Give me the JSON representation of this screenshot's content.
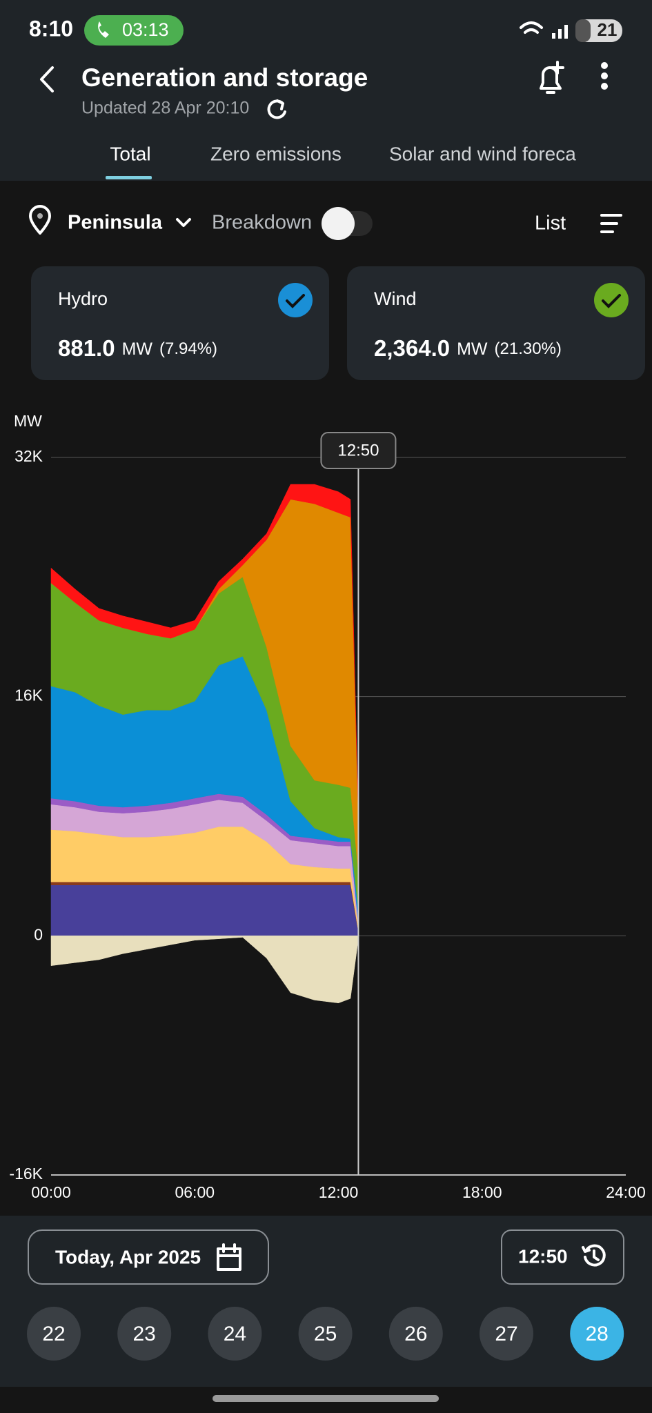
{
  "status_bar": {
    "time": "8:10",
    "call_timer": "03:13",
    "battery": "21"
  },
  "header": {
    "title": "Generation and storage",
    "updated": "Updated 28 Apr 20:10"
  },
  "tabs": [
    "Total",
    "Zero emissions",
    "Solar and wind foreca"
  ],
  "filters": {
    "region": "Peninsula",
    "breakdown": "Breakdown",
    "list": "List"
  },
  "cards": [
    {
      "label": "Hydro",
      "value": "881.0",
      "unit": "MW",
      "share": "(7.94%)",
      "color": "#1a8fd6"
    },
    {
      "label": "Wind",
      "value": "2,364.0",
      "unit": "MW",
      "share": "(21.30%)",
      "color": "#6aab1f"
    }
  ],
  "chart_data": {
    "type": "area",
    "stacked": true,
    "y_label": "MW",
    "grid": true,
    "x": [
      0,
      1,
      2,
      3,
      4,
      5,
      6,
      7,
      8,
      9,
      10,
      11,
      12,
      12.5,
      12.8333
    ],
    "xlim": [
      0,
      24
    ],
    "xticks": [
      {
        "value": 0,
        "label": "00:00"
      },
      {
        "value": 6,
        "label": "06:00"
      },
      {
        "value": 12,
        "label": "12:00"
      },
      {
        "value": 18,
        "label": "18:00"
      },
      {
        "value": 24,
        "label": "24:00"
      }
    ],
    "ylim": [
      -16000,
      32000
    ],
    "yticks": [
      {
        "value": -16000,
        "label": "-16K"
      },
      0,
      {
        "value": 16000,
        "label": "16K"
      },
      {
        "value": 32000,
        "label": "32K"
      }
    ],
    "cursor": {
      "value": 12.8333,
      "label": "12:50"
    },
    "series": [
      {
        "color": "#48409a",
        "values": [
          3400,
          3400,
          3400,
          3400,
          3400,
          3400,
          3400,
          3400,
          3400,
          3400,
          3400,
          3400,
          3400,
          3400,
          300
        ]
      },
      {
        "color": "#8a3b1c",
        "values": [
          200,
          200,
          200,
          200,
          200,
          200,
          200,
          200,
          200,
          200,
          200,
          200,
          200,
          200,
          0
        ]
      },
      {
        "color": "#ffcc66",
        "values": [
          3500,
          3400,
          3200,
          3000,
          3000,
          3100,
          3300,
          3700,
          3700,
          2700,
          1200,
          1000,
          900,
          900,
          300
        ]
      },
      {
        "color": "#d5a6d6",
        "values": [
          1700,
          1600,
          1500,
          1600,
          1700,
          1800,
          1900,
          1800,
          1600,
          1400,
          1600,
          1600,
          1500,
          1500,
          200
        ]
      },
      {
        "color": "#9b5cc6",
        "values": [
          400,
          400,
          400,
          400,
          400,
          400,
          400,
          400,
          400,
          400,
          300,
          300,
          300,
          300,
          100
        ]
      },
      {
        "color": "#0b8fd6",
        "values": [
          7500,
          7300,
          6700,
          6200,
          6400,
          6200,
          6500,
          8600,
          9400,
          7000,
          2300,
          700,
          300,
          200,
          900
        ]
      },
      {
        "color": "#6aab1f",
        "values": [
          6900,
          6000,
          5700,
          5800,
          5100,
          4800,
          4800,
          4800,
          5300,
          4200,
          3700,
          3200,
          3500,
          3400,
          2400
        ]
      },
      {
        "color": "#e08900",
        "values": [
          0,
          0,
          0,
          0,
          0,
          0,
          0,
          300,
          800,
          7200,
          16500,
          18500,
          18200,
          18100,
          3500
        ]
      },
      {
        "color": "#ff1414",
        "values": [
          1000,
          900,
          800,
          800,
          800,
          700,
          600,
          500,
          400,
          400,
          1000,
          1300,
          1400,
          1200,
          300
        ]
      },
      {
        "color": "#e8dfbd",
        "values": [
          -2000,
          -1800,
          -1600,
          -1200,
          -900,
          -600,
          -300,
          -200,
          -100,
          -1500,
          -3800,
          -4300,
          -4500,
          -4200,
          -200
        ]
      }
    ]
  },
  "footer": {
    "date": "Today, Apr 2025",
    "time": "12:50",
    "days": [
      "22",
      "23",
      "24",
      "25",
      "26",
      "27",
      "28"
    ]
  }
}
